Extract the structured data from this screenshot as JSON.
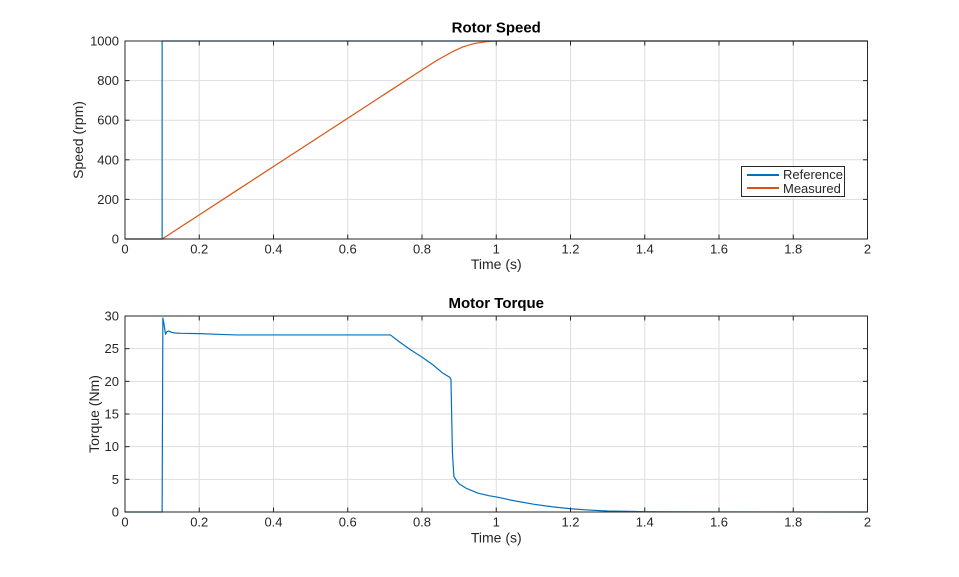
{
  "figure": {
    "background": "#ffffff",
    "axis_color": "#262626",
    "grid_color": "#dedede",
    "title_color": "#000000"
  },
  "legend": {
    "visible": true,
    "position": "east-inside-top-plot",
    "entries": [
      "Reference",
      "Measured"
    ]
  },
  "chart_data": [
    {
      "name": "rotor-speed",
      "type": "line",
      "title": "Rotor Speed",
      "xlabel": "Time (s)",
      "ylabel": "Speed (rpm)",
      "xlim": [
        0,
        2
      ],
      "ylim": [
        0,
        1000
      ],
      "grid": true,
      "x_ticks": [
        "0",
        "0.2",
        "0.4",
        "0.6",
        "0.8",
        "1",
        "1.2",
        "1.4",
        "1.6",
        "1.8",
        "2"
      ],
      "y_ticks": [
        "0",
        "200",
        "400",
        "600",
        "800",
        "1000"
      ],
      "series": [
        {
          "name": "Reference",
          "color": "#0072BD",
          "x": [
            0,
            0.1,
            0.1,
            2
          ],
          "y": [
            0,
            0,
            1000,
            1000
          ]
        },
        {
          "name": "Measured",
          "color": "#D95319",
          "x": [
            0,
            0.1,
            0.2,
            0.3,
            0.4,
            0.5,
            0.6,
            0.7,
            0.8,
            0.84,
            0.88,
            0.91,
            0.94,
            0.97,
            1.0,
            1.05,
            2.0
          ],
          "y": [
            0,
            0,
            122,
            244,
            366,
            488,
            610,
            732,
            854,
            902,
            944,
            970,
            987,
            996,
            1000,
            1000,
            1000
          ]
        }
      ]
    },
    {
      "name": "motor-torque",
      "type": "line",
      "title": "Motor Torque",
      "xlabel": "Time (s)",
      "ylabel": "Torque (Nm)",
      "xlim": [
        0,
        2
      ],
      "ylim": [
        0,
        30
      ],
      "grid": true,
      "x_ticks": [
        "0",
        "0.2",
        "0.4",
        "0.6",
        "0.8",
        "1",
        "1.2",
        "1.4",
        "1.6",
        "1.8",
        "2"
      ],
      "y_ticks": [
        "0",
        "5",
        "10",
        "15",
        "20",
        "25",
        "30"
      ],
      "series": [
        {
          "name": "Torque",
          "color": "#0072BD",
          "x": [
            0,
            0.1,
            0.102,
            0.105,
            0.109,
            0.113,
            0.118,
            0.125,
            0.135,
            0.15,
            0.2,
            0.25,
            0.3,
            0.4,
            0.5,
            0.6,
            0.7,
            0.715,
            0.74,
            0.77,
            0.8,
            0.83,
            0.855,
            0.875,
            0.878,
            0.882,
            0.886,
            0.893,
            0.9,
            0.92,
            0.95,
            0.98,
            1.0,
            1.05,
            1.1,
            1.15,
            1.2,
            1.25,
            1.3,
            1.4,
            1.5,
            2.0
          ],
          "y": [
            0,
            0,
            29.7,
            28.8,
            27.2,
            27.6,
            27.7,
            27.5,
            27.4,
            27.35,
            27.3,
            27.2,
            27.1,
            27.1,
            27.1,
            27.1,
            27.1,
            27.1,
            26.0,
            24.8,
            23.7,
            22.5,
            21.3,
            20.6,
            20.3,
            9.0,
            5.4,
            4.8,
            4.3,
            3.6,
            2.9,
            2.5,
            2.3,
            1.7,
            1.2,
            0.8,
            0.5,
            0.3,
            0.15,
            0.05,
            0.02,
            0
          ]
        }
      ]
    }
  ]
}
